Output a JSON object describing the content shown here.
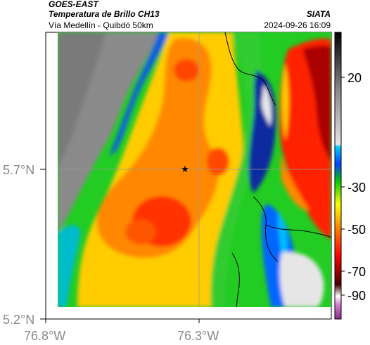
{
  "header": {
    "satellite": "GOES-EAST",
    "product": "Temperatura de Brillo CH13",
    "organization": "SIATA",
    "region": "Vía Medellín - Quibdó 50km",
    "timestamp": "2024-09-26 16:09"
  },
  "map": {
    "lat_ticks": [
      {
        "label": "5.7°N",
        "value": 5.7
      },
      {
        "label": "5.2°N",
        "value": 5.2
      }
    ],
    "lon_ticks": [
      {
        "label": "76.8°W",
        "value": -76.8
      },
      {
        "label": "76.3°W",
        "value": -76.3
      }
    ],
    "marker": {
      "symbol": "★"
    },
    "colors": {
      "cloud_top_cold": "#ff2200",
      "cloud_mid": "#ffcc00",
      "clear_warm": "#8a8a8a",
      "convective_band": "#1e3fd0"
    }
  },
  "colorbar": {
    "labels": [
      "20",
      "-30",
      "-50",
      "-70",
      "-90"
    ],
    "unit_values": [
      20,
      -30,
      -50,
      -70,
      -90
    ]
  }
}
